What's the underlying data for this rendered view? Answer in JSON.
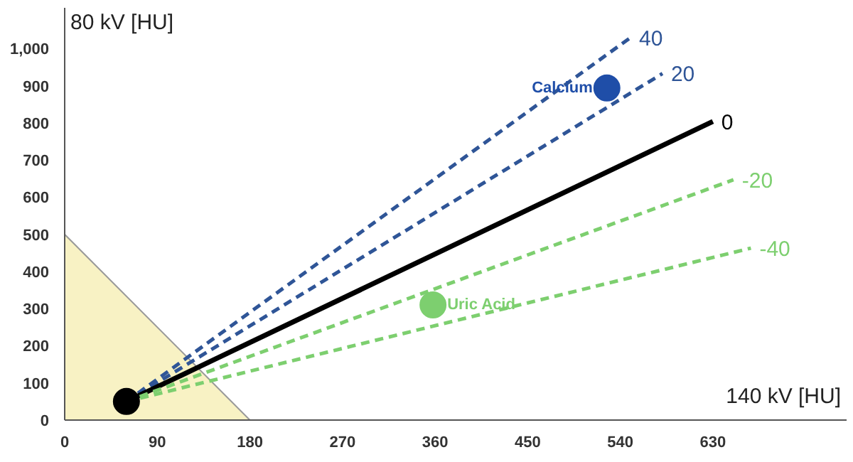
{
  "chart_data": {
    "type": "line",
    "xlabel": "140 kV [HU]",
    "ylabel": "80 kV [HU]",
    "xlim": [
      0,
      760
    ],
    "ylim": [
      0,
      1110
    ],
    "xticks": [
      0,
      90,
      180,
      270,
      360,
      450,
      540,
      630
    ],
    "yticks": [
      0,
      100,
      200,
      300,
      400,
      500,
      600,
      700,
      800,
      900,
      {
        "value": 1000,
        "label": "1,000"
      }
    ],
    "grid": false,
    "series": [
      {
        "type": "area",
        "color": "#f8f2c4",
        "x": [
          0,
          180
        ],
        "values": [
          500,
          0
        ]
      },
      {
        "name": "40",
        "color": "#2f5597",
        "line_style": "dashed",
        "x": [
          60,
          550
        ],
        "values": [
          50,
          1030
        ]
      },
      {
        "name": "20",
        "color": "#2f5597",
        "line_style": "dashed",
        "x": [
          60,
          581
        ],
        "values": [
          50,
          933
        ]
      },
      {
        "name": "0",
        "color": "#000000",
        "line_style": "solid",
        "x": [
          60,
          630
        ],
        "values": [
          50,
          804
        ]
      },
      {
        "name": "-20",
        "color": "#7dcf6f",
        "line_style": "dashed",
        "x": [
          60,
          650
        ],
        "values": [
          50,
          647
        ]
      },
      {
        "name": "-40",
        "color": "#7dcf6f",
        "line_style": "dashed",
        "x": [
          60,
          667
        ],
        "values": [
          50,
          463
        ]
      },
      {
        "type": "scatter",
        "marker": "circle",
        "color": "#000000",
        "x": [
          60
        ],
        "values": [
          50
        ]
      },
      {
        "type": "scatter",
        "marker": "circle",
        "name": "Calcium",
        "color": "#1f4ea8",
        "x": [
          527
        ],
        "values": [
          894
        ]
      },
      {
        "type": "scatter",
        "marker": "circle",
        "name": "Uric Acid",
        "color": "#7dcf6f",
        "x": [
          358
        ],
        "values": [
          310
        ]
      }
    ]
  }
}
